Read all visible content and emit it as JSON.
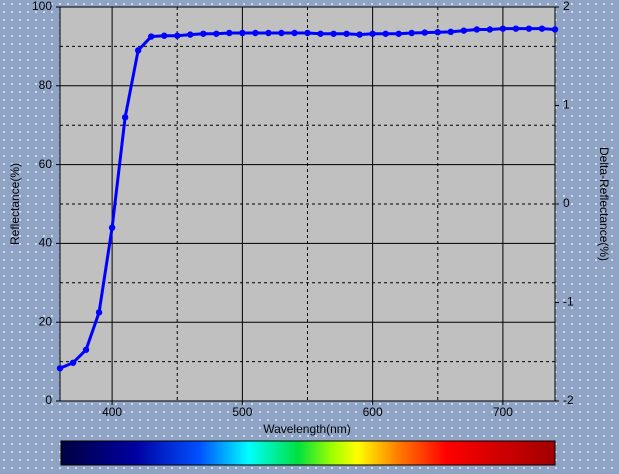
{
  "chart_data": {
    "type": "line",
    "xlabel": "Wavelength(nm)",
    "ylabel": "Reflectance(%)",
    "y2label": "Delta-Reflectance(%)",
    "x": [
      360,
      370,
      380,
      390,
      400,
      410,
      420,
      430,
      440,
      450,
      460,
      470,
      480,
      490,
      500,
      510,
      520,
      530,
      540,
      550,
      560,
      570,
      580,
      590,
      600,
      610,
      620,
      630,
      640,
      650,
      660,
      670,
      680,
      690,
      700,
      710,
      720,
      730,
      740
    ],
    "series": [
      {
        "name": "Reflectance",
        "color": "#0000ff",
        "values": [
          8.3,
          9.7,
          13,
          22.5,
          44,
          72,
          89,
          92.5,
          92.7,
          92.7,
          93,
          93.2,
          93.2,
          93.4,
          93.4,
          93.4,
          93.4,
          93.4,
          93.4,
          93.4,
          93.2,
          93.2,
          93.2,
          93,
          93.2,
          93.2,
          93.2,
          93.4,
          93.5,
          93.6,
          93.7,
          94,
          94.3,
          94.3,
          94.5,
          94.5,
          94.5,
          94.5,
          94.3
        ]
      }
    ],
    "xlim": [
      360,
      740
    ],
    "xticks": [
      400,
      500,
      600,
      700
    ],
    "xminorticks": [
      450,
      550,
      650
    ],
    "ylim": [
      0,
      100
    ],
    "yticks": [
      0,
      20,
      40,
      60,
      80,
      100
    ],
    "yminorticks": [
      10,
      30,
      50,
      70,
      90
    ],
    "y2lim": [
      -2,
      2
    ],
    "y2ticks": [
      -2,
      -1,
      0,
      1,
      2
    ],
    "grid": true
  }
}
